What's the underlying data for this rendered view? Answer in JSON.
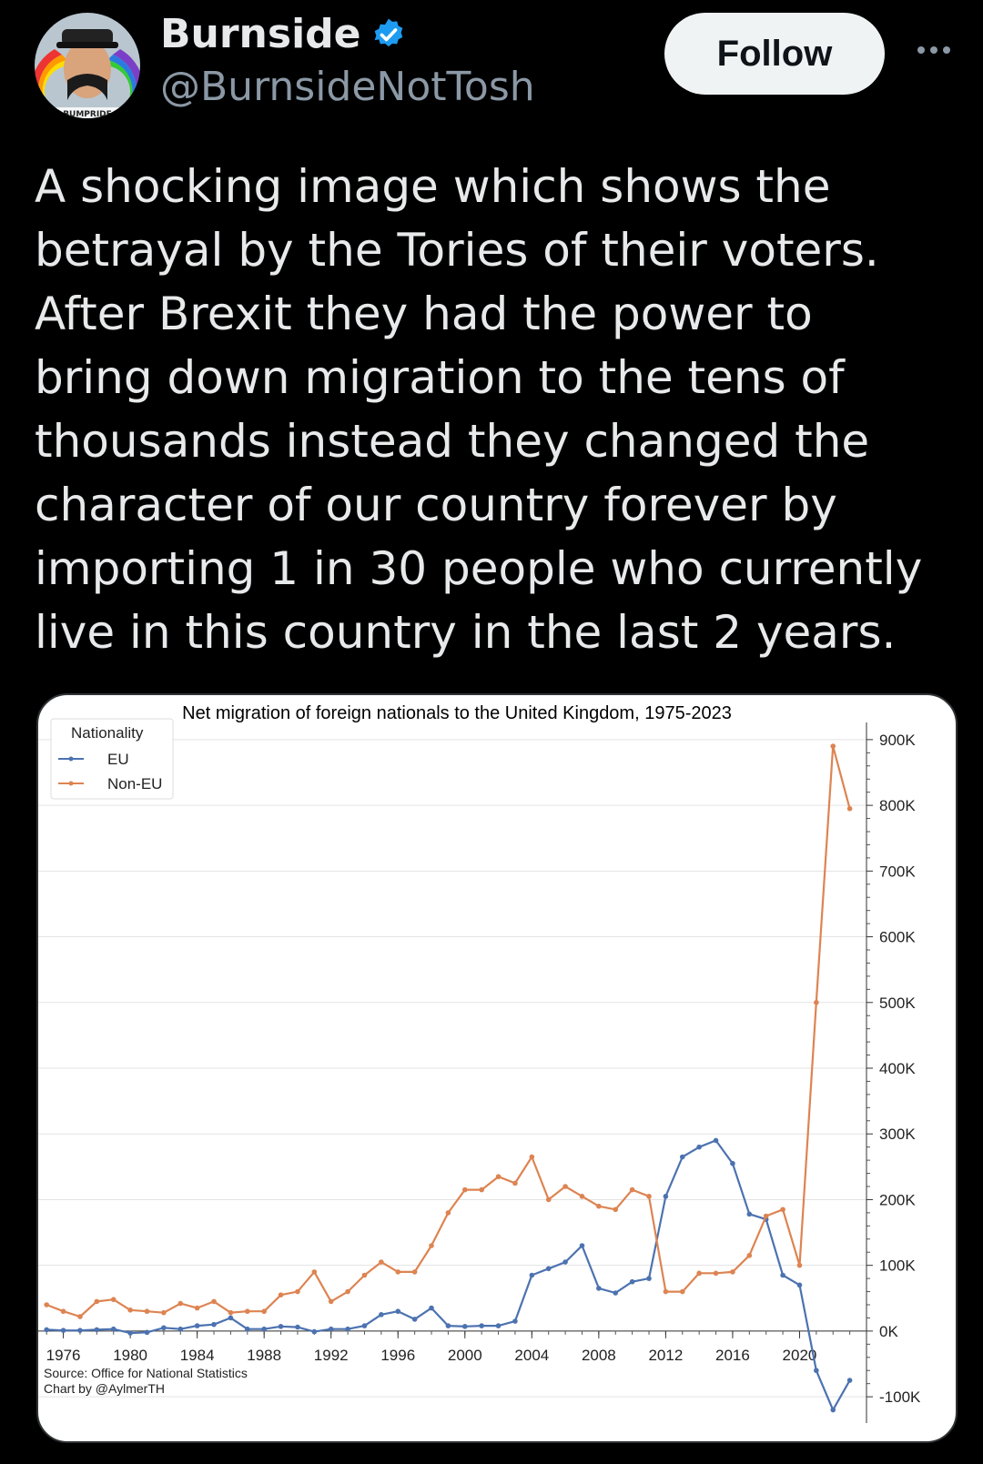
{
  "author": {
    "display_name": "Burnside",
    "handle": "@BurnsideNotTosh",
    "avatar_caption": "BUMPRIDE",
    "verified": true
  },
  "actions": {
    "follow_label": "Follow",
    "more_icon": "more-horizontal-icon"
  },
  "tweet": {
    "text": "A shocking image which shows the\nbetrayal by the Tories of their voters.\nAfter Brexit they had the power to\nbring down migration to the tens of\nthousands instead they changed the\ncharacter of our country forever by\nimporting 1 in 30 people who currently\nlive in this country in the last 2 years."
  },
  "colors": {
    "eu": "#4c72b0",
    "non_eu": "#dd8452",
    "verified_blue": "#1d9bf0"
  },
  "chart_data": {
    "type": "line",
    "title": "Net migration of foreign nationals to the United Kingdom, 1975-2023",
    "legend_title": "Nationality",
    "legend_position": "top-left",
    "y_axis_side": "right",
    "grid": "horizontal",
    "xlim": [
      1974.5,
      2024
    ],
    "ylim": [
      -140000,
      940000
    ],
    "x_ticks": [
      1976,
      1980,
      1984,
      1988,
      1992,
      1996,
      2000,
      2004,
      2008,
      2012,
      2016,
      2020
    ],
    "y_ticks": [
      -100000,
      0,
      100000,
      200000,
      300000,
      400000,
      500000,
      600000,
      700000,
      800000,
      900000
    ],
    "y_tick_labels": [
      "-100K",
      "0K",
      "100K",
      "200K",
      "300K",
      "400K",
      "500K",
      "600K",
      "700K",
      "800K",
      "900K"
    ],
    "x": [
      1975,
      1976,
      1977,
      1978,
      1979,
      1980,
      1981,
      1982,
      1983,
      1984,
      1985,
      1986,
      1987,
      1988,
      1989,
      1990,
      1991,
      1992,
      1993,
      1994,
      1995,
      1996,
      1997,
      1998,
      1999,
      2000,
      2001,
      2002,
      2003,
      2004,
      2005,
      2006,
      2007,
      2008,
      2009,
      2010,
      2011,
      2012,
      2013,
      2014,
      2015,
      2016,
      2017,
      2018,
      2019,
      2020,
      2021,
      2022,
      2023
    ],
    "series": [
      {
        "name": "EU",
        "values": [
          2000,
          1000,
          1000,
          2000,
          3000,
          -3000,
          -2000,
          5000,
          3000,
          8000,
          10000,
          20000,
          3000,
          3000,
          7000,
          6000,
          -1000,
          3000,
          3000,
          8000,
          25000,
          30000,
          18000,
          35000,
          8000,
          7000,
          8000,
          8000,
          15000,
          85000,
          95000,
          105000,
          130000,
          65000,
          58000,
          75000,
          80000,
          205000,
          265000,
          280000,
          290000,
          255000,
          178000,
          170000,
          85000,
          70000,
          -60000,
          -120000,
          -75000
        ]
      },
      {
        "name": "Non-EU",
        "values": [
          40000,
          30000,
          22000,
          45000,
          48000,
          32000,
          30000,
          28000,
          42000,
          35000,
          45000,
          28000,
          30000,
          30000,
          55000,
          60000,
          90000,
          45000,
          60000,
          85000,
          105000,
          90000,
          90000,
          130000,
          180000,
          215000,
          215000,
          235000,
          225000,
          265000,
          200000,
          220000,
          205000,
          190000,
          185000,
          215000,
          205000,
          60000,
          60000,
          88000,
          88000,
          90000,
          115000,
          175000,
          185000,
          100000,
          500000,
          890000,
          795000
        ]
      }
    ],
    "source_lines": [
      "Source: Office for National Statistics",
      "Chart by @AylmerTH"
    ]
  }
}
